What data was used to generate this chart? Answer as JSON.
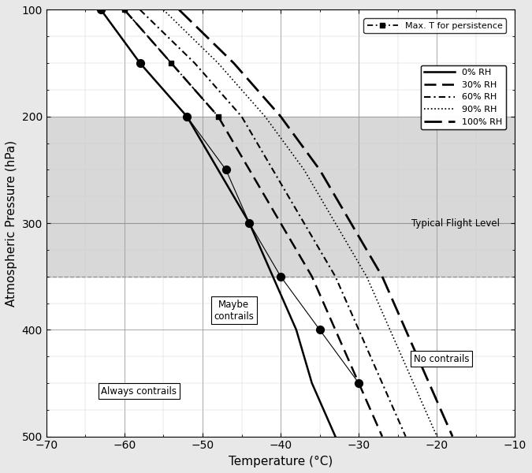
{
  "xlabel": "Temperature (°C)",
  "ylabel": "Atmospheric Pressure (hPa)",
  "xlim": [
    -70,
    -10
  ],
  "ylim": [
    500,
    100
  ],
  "yticks": [
    100,
    200,
    300,
    400,
    500
  ],
  "xticks": [
    -70,
    -60,
    -50,
    -40,
    -30,
    -20,
    -10
  ],
  "flight_level_y1": 200,
  "flight_level_y2": 350,
  "flight_level_label": "Typical Flight Level",
  "always_contrails_label": "Always contrails",
  "maybe_contrails_label": "Maybe\ncontrails",
  "no_contrails_label": "No contrails",
  "rh_labels": [
    "0% RH",
    "30% RH",
    "60% RH",
    "90% RH",
    "100% RH"
  ],
  "max_T_label": "Max. T for persistence",
  "pressure_levels": [
    100,
    150,
    200,
    250,
    300,
    350,
    400,
    450,
    500
  ],
  "curves_rh0": [
    -63,
    -58,
    -52,
    -48,
    -44,
    -41,
    -38,
    -36,
    -33
  ],
  "curves_rh30": [
    -60,
    -54,
    -48,
    -44,
    -40,
    -36,
    -33,
    -30,
    -27
  ],
  "curves_rh60": [
    -58,
    -51,
    -45,
    -41,
    -37,
    -33,
    -30,
    -27,
    -24
  ],
  "curves_rh90": [
    -55,
    -48,
    -42,
    -37,
    -33,
    -29,
    -26,
    -23,
    -20
  ],
  "curves_rh100": [
    -53,
    -46,
    -40,
    -35,
    -31,
    -27,
    -24,
    -21,
    -18
  ],
  "dot_pressures": [
    100,
    150,
    200,
    250,
    300,
    350,
    400,
    450
  ],
  "dot_temps": [
    -63,
    -58,
    -52,
    -47,
    -44,
    -40,
    -35,
    -30
  ],
  "max_T_pressures": [
    100,
    150,
    200
  ],
  "max_T_temps": [
    -60,
    -54,
    -48
  ],
  "bg_color": "#e8e8e8",
  "plot_bg": "#ffffff",
  "grid_color_major": "#999999",
  "grid_color_minor": "#cccccc",
  "flight_band_color": "#c8c8c8",
  "flight_band_alpha": 0.7
}
